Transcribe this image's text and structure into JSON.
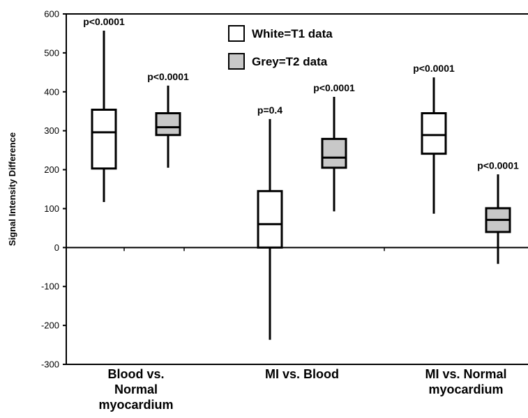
{
  "chart_data": {
    "type": "boxplot",
    "title": "",
    "xlabel": "",
    "ylabel": "Signal Intensity Difference",
    "ylim": [
      -300,
      600
    ],
    "yticks": [
      -300,
      -200,
      -100,
      0,
      100,
      200,
      300,
      400,
      500,
      600
    ],
    "categories": [
      [
        "Blood vs.",
        "Normal",
        "myocardium"
      ],
      [
        "MI vs. Blood"
      ],
      [
        "MI vs. Normal",
        "myocardium"
      ]
    ],
    "series": [
      {
        "name": "White=T1 data",
        "color": "#ffffff",
        "boxes": [
          {
            "min": 117,
            "q1": 203,
            "median": 296,
            "q3": 354,
            "max": 557,
            "pvalue": "p<0.0001"
          },
          {
            "min": -237,
            "q1": 0,
            "median": 60,
            "q3": 145,
            "max": 330,
            "pvalue": "p=0.4"
          },
          {
            "min": 87,
            "q1": 241,
            "median": 289,
            "q3": 345,
            "max": 437,
            "pvalue": "p<0.0001"
          }
        ]
      },
      {
        "name": "Grey=T2 data",
        "color": "#c8c8c8",
        "boxes": [
          {
            "min": 205,
            "q1": 289,
            "median": 309,
            "q3": 345,
            "max": 416,
            "pvalue": "p<0.0001"
          },
          {
            "min": 93,
            "q1": 205,
            "median": 231,
            "q3": 279,
            "max": 387,
            "pvalue": "p<0.0001"
          },
          {
            "min": -42,
            "q1": 40,
            "median": 71,
            "q3": 101,
            "max": 188,
            "pvalue": "p<0.0001"
          }
        ]
      }
    ],
    "legend": {
      "position": "top-center"
    },
    "grid": false
  }
}
